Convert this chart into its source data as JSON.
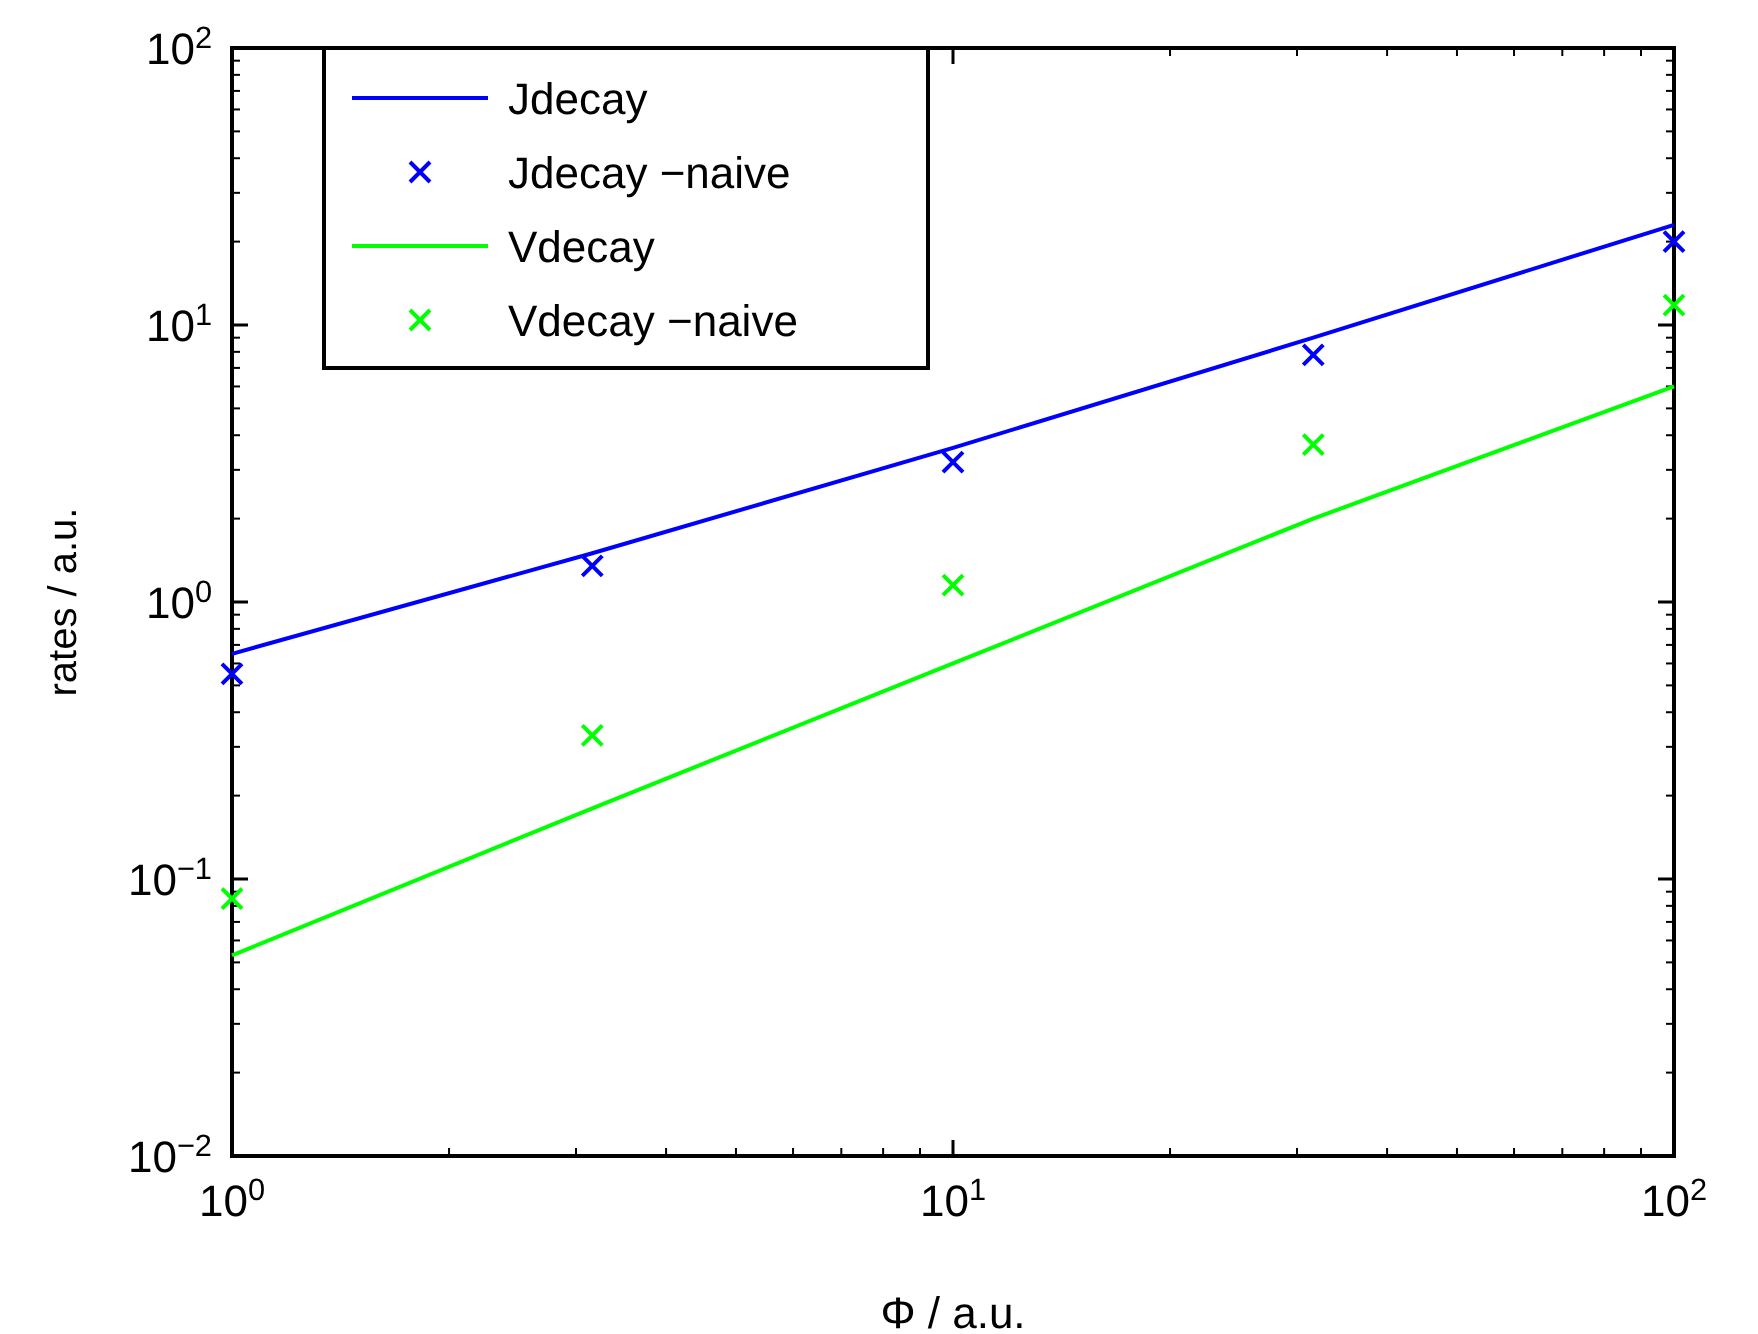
{
  "chart_data": {
    "type": "line",
    "xlabel": "Φ / a.u.",
    "ylabel": "rates / a.u.",
    "log": "xy",
    "grid": false,
    "legend": "top left",
    "xlim": [
      1,
      100
    ],
    "xticks": [
      {
        "value": 1,
        "label": "10$^{0}$"
      },
      {
        "value": 10,
        "label": "10$^{1}$"
      },
      {
        "value": 100,
        "label": "10$^{2}$"
      }
    ],
    "ylim": [
      0.01,
      100
    ],
    "yticks": [
      {
        "value": 0.01,
        "label": "10$^{−2}$"
      },
      {
        "value": 0.1,
        "label": "10$^{−1}$"
      },
      {
        "value": 1,
        "label": "10$^{0}$"
      },
      {
        "value": 10,
        "label": "10$^{1}$"
      },
      {
        "value": 100,
        "label": "10$^{2}$"
      }
    ],
    "x": [
      1,
      3.16,
      10,
      31.6,
      100
    ],
    "series": [
      {
        "name": "Jdecay",
        "color": "#0000ff",
        "marker": "none",
        "line_style": "solid",
        "values": [
          0.65,
          1.5,
          3.6,
          9,
          23
        ]
      },
      {
        "name": "Jdecay −naive",
        "type": "scatter",
        "color": "#0000ff",
        "marker": "cross",
        "values": [
          0.55,
          1.35,
          3.2,
          7.8,
          20
        ]
      },
      {
        "name": "Vdecay",
        "color": "#00ff00",
        "marker": "none",
        "line_style": "solid",
        "values": [
          0.053,
          0.18,
          0.6,
          2.0,
          6
        ]
      },
      {
        "name": "Vdecay −naive",
        "type": "scatter",
        "color": "#00ff00",
        "marker": "cross",
        "values": [
          0.085,
          0.33,
          1.15,
          3.7,
          11.8
        ]
      }
    ]
  }
}
